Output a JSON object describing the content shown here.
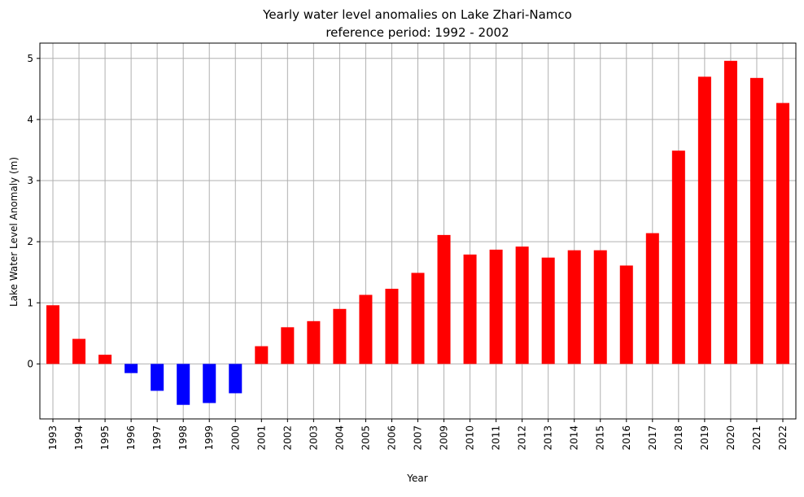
{
  "chart_data": {
    "type": "bar",
    "title": "Yearly water level anomalies on Lake Zhari-Namco",
    "subtitle": "reference period:  1992 - 2002",
    "xlabel": "Year",
    "ylabel": "Lake Water Level Anomaly (m)",
    "ylim": [
      -0.9,
      5.25
    ],
    "yticks": [
      0,
      1,
      2,
      3,
      4,
      5
    ],
    "grid": true,
    "categories": [
      "1993",
      "1994",
      "1995",
      "1996",
      "1997",
      "1998",
      "1999",
      "2000",
      "2001",
      "2002",
      "2003",
      "2004",
      "2005",
      "2006",
      "2007",
      "2009",
      "2010",
      "2011",
      "2012",
      "2013",
      "2014",
      "2015",
      "2016",
      "2017",
      "2018",
      "2019",
      "2020",
      "2021",
      "2022"
    ],
    "values": [
      0.96,
      0.41,
      0.15,
      -0.15,
      -0.44,
      -0.67,
      -0.64,
      -0.48,
      0.29,
      0.6,
      0.7,
      0.9,
      1.13,
      1.23,
      1.49,
      2.11,
      1.79,
      1.87,
      1.92,
      1.74,
      1.86,
      1.86,
      1.61,
      2.14,
      3.49,
      4.7,
      4.96,
      4.68,
      4.27
    ],
    "colors": {
      "positive": "#ff0000",
      "negative": "#0000ff",
      "grid": "#b0b0b0"
    }
  }
}
